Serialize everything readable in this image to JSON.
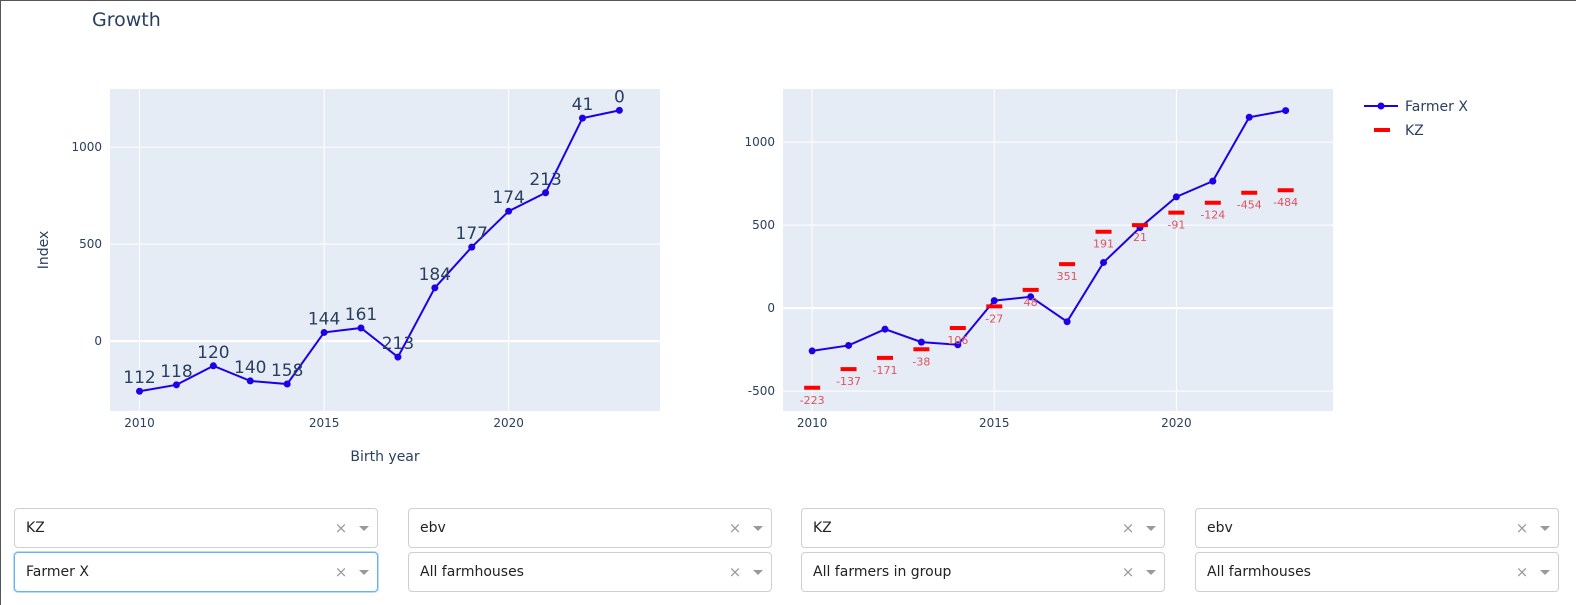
{
  "page": {
    "title": "Growth"
  },
  "chart_data": [
    {
      "type": "line",
      "title": "",
      "xlabel": "Birth year",
      "ylabel": "Index",
      "xlim": [
        2009.2,
        2024.1
      ],
      "ylim": [
        -360,
        1300
      ],
      "x_ticks": [
        2010,
        2015,
        2020
      ],
      "y_ticks": [
        0,
        500,
        1000
      ],
      "grid": true,
      "series": [
        {
          "name": "Farmer X",
          "color": "#1f00e6",
          "x": [
            2010,
            2011,
            2012,
            2013,
            2014,
            2015,
            2016,
            2017,
            2018,
            2019,
            2020,
            2021,
            2022,
            2023
          ],
          "y": [
            -258,
            -225,
            -127,
            -205,
            -221,
            45,
            68,
            -82,
            275,
            485,
            670,
            765,
            1150,
            1190
          ],
          "labels": [
            "112",
            "118",
            "120",
            "140",
            "158",
            "144",
            "161",
            "213",
            "184",
            "177",
            "174",
            "213",
            "41",
            "0"
          ]
        }
      ]
    },
    {
      "type": "line",
      "title": "",
      "xlabel": "",
      "ylabel": "",
      "xlim": [
        2009.2,
        2024.3
      ],
      "ylim": [
        -620,
        1320
      ],
      "x_ticks": [
        2010,
        2015,
        2020
      ],
      "y_ticks": [
        -500,
        0,
        500,
        1000
      ],
      "grid": true,
      "legend": "top-right",
      "series": [
        {
          "name": "Farmer X",
          "color": "#1f00e6",
          "x": [
            2010,
            2011,
            2012,
            2013,
            2014,
            2015,
            2016,
            2017,
            2018,
            2019,
            2020,
            2021,
            2022,
            2023
          ],
          "y": [
            -258,
            -225,
            -127,
            -205,
            -221,
            45,
            68,
            -82,
            275,
            485,
            670,
            765,
            1150,
            1190
          ]
        },
        {
          "name": "KZ",
          "color": "#ff0000",
          "mode": "markers",
          "x": [
            2010,
            2011,
            2012,
            2013,
            2014,
            2015,
            2016,
            2017,
            2018,
            2019,
            2020,
            2021,
            2022,
            2023
          ],
          "y": [
            -480,
            -368,
            -300,
            -248,
            -120,
            10,
            110,
            265,
            460,
            500,
            575,
            635,
            695,
            710
          ],
          "labels": [
            "-223",
            "-137",
            "-171",
            "-38",
            "106",
            "-27",
            "48",
            "351",
            "191",
            "21",
            "-91",
            "-124",
            "-454",
            "-484"
          ]
        }
      ]
    }
  ],
  "filters": [
    {
      "value": "KZ",
      "focused": false
    },
    {
      "value": "Farmer X",
      "focused": true
    },
    {
      "value": "ebv",
      "focused": false
    },
    {
      "value": "All farmhouses",
      "focused": false
    },
    {
      "value": "KZ",
      "focused": false
    },
    {
      "value": "All farmers in group",
      "focused": false
    },
    {
      "value": "ebv",
      "focused": false
    },
    {
      "value": "All farmhouses",
      "focused": false
    }
  ],
  "clear_glyph": "×",
  "icons": {
    "clear": "close-icon",
    "caret": "chevron-down-icon"
  }
}
